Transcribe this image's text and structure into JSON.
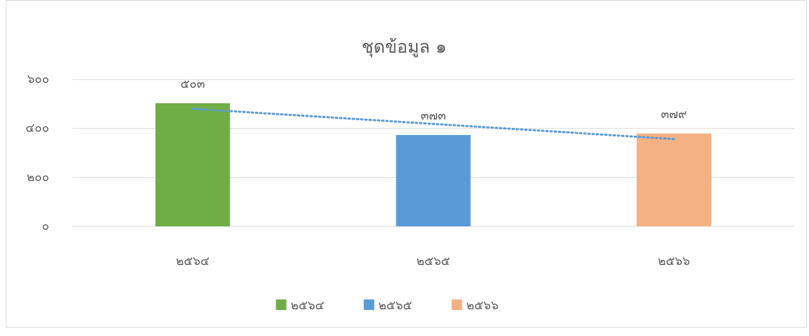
{
  "chart_data": {
    "type": "bar",
    "title": "ชุดข้อมูล ๑",
    "categories": [
      "๒๕๖๔",
      "๒๕๖๕",
      "๒๕๖๖"
    ],
    "values": [
      503,
      373,
      379
    ],
    "value_labels": [
      "๕๐๓",
      "๓๗๓",
      "๓๗๙"
    ],
    "colors": [
      "#70ad47",
      "#5b9bd5",
      "#f4b183"
    ],
    "ylim": [
      0,
      600
    ],
    "yticks": [
      {
        "value": 0,
        "label": "๐"
      },
      {
        "value": 200,
        "label": "๒๐๐"
      },
      {
        "value": 400,
        "label": "๔๐๐"
      },
      {
        "value": 600,
        "label": "๖๐๐"
      }
    ],
    "grid": true,
    "legend": "bottom",
    "trendline": "linear",
    "trendline_color": "#5b9bd5"
  }
}
